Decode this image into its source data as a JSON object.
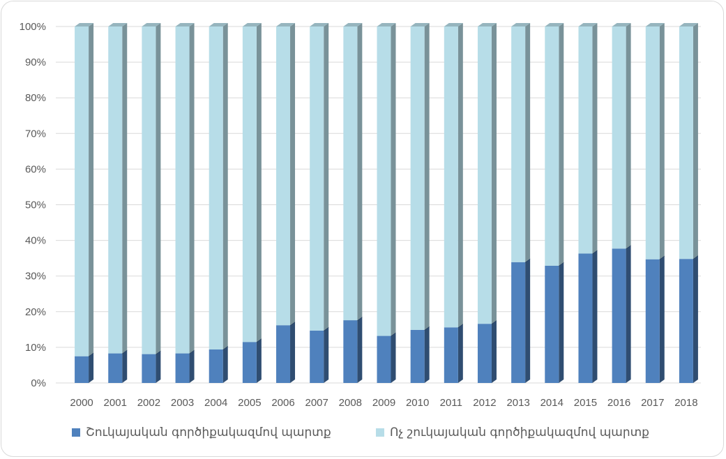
{
  "chart_data": {
    "type": "bar",
    "stacked": "percent",
    "three_d": true,
    "categories": [
      "2000",
      "2001",
      "2002",
      "2003",
      "2004",
      "2005",
      "2006",
      "2007",
      "2008",
      "2009",
      "2010",
      "2011",
      "2012",
      "2013",
      "2014",
      "2015",
      "2016",
      "2017",
      "2018"
    ],
    "series": [
      {
        "name": "Շուկայական գործիքակազմով պարտք",
        "color": "#4f81bd",
        "values": [
          7.5,
          8.3,
          8.1,
          8.3,
          9.4,
          11.5,
          16.2,
          14.7,
          17.6,
          13.2,
          14.9,
          15.6,
          16.6,
          33.9,
          32.9,
          36.3,
          37.7,
          34.7,
          34.8
        ]
      },
      {
        "name": "Ոչ շուկայական գործիքակազմով պարտք",
        "color": "#b7dde8",
        "values": [
          92.5,
          91.7,
          91.9,
          91.7,
          90.6,
          88.5,
          83.8,
          85.3,
          82.4,
          86.8,
          85.1,
          84.4,
          83.4,
          66.1,
          67.1,
          63.7,
          62.3,
          65.3,
          65.2
        ]
      }
    ],
    "y_ticks": [
      "0%",
      "10%",
      "20%",
      "30%",
      "40%",
      "50%",
      "60%",
      "70%",
      "80%",
      "90%",
      "100%"
    ],
    "ylim": [
      0,
      100
    ],
    "grid": true,
    "legend_position": "bottom"
  }
}
